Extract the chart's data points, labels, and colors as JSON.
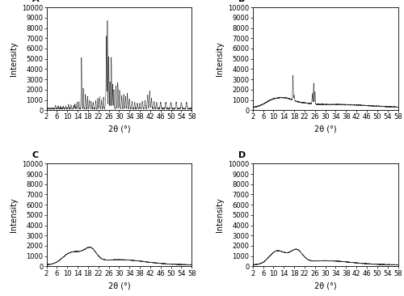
{
  "xlim": [
    2,
    58
  ],
  "ylim": [
    0,
    10000
  ],
  "yticks": [
    0,
    1000,
    2000,
    3000,
    4000,
    5000,
    6000,
    7000,
    8000,
    9000,
    10000
  ],
  "xticks": [
    2,
    6,
    10,
    14,
    18,
    22,
    26,
    30,
    34,
    38,
    42,
    46,
    50,
    54,
    58
  ],
  "xlabel": "2θ (°)",
  "ylabel": "Intensity",
  "panel_labels": [
    "A",
    "B",
    "C",
    "D"
  ],
  "line_color": "#303030",
  "background_color": "#ffffff",
  "label_fontsize": 7,
  "tick_fontsize": 6,
  "panel_label_fontsize": 8
}
